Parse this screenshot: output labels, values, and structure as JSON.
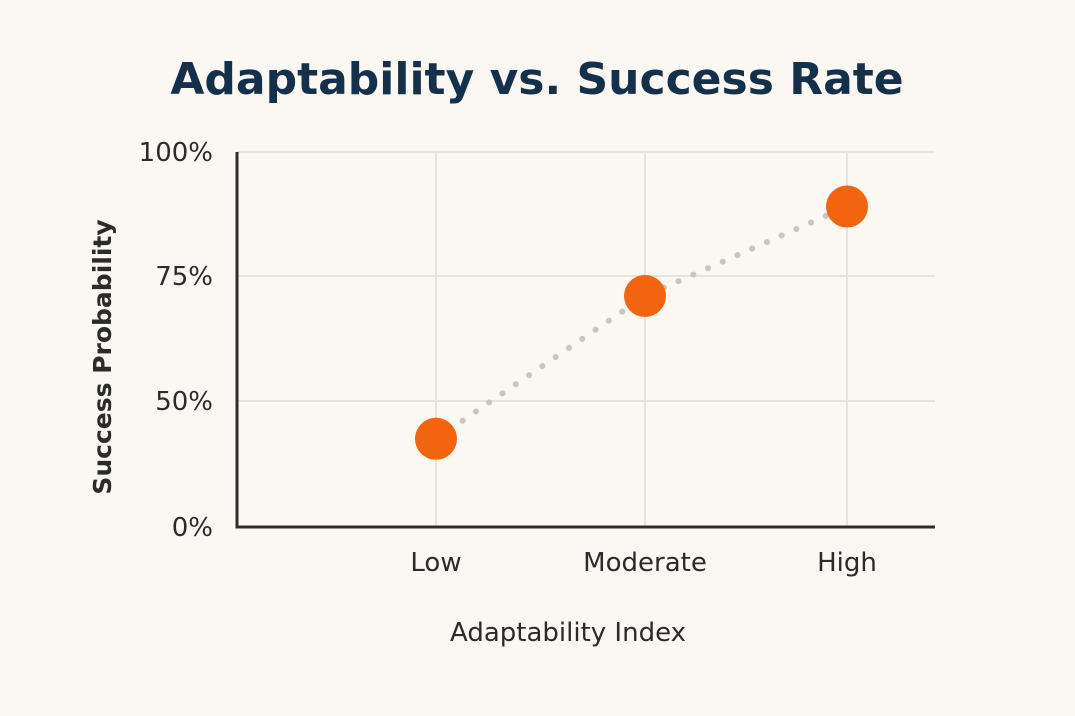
{
  "colors": {
    "background": "#fbf8f3",
    "title": "#15304a",
    "point": "#f2640f",
    "trend": "#c9c6c1",
    "axis": "#2e2e2e",
    "grid": "#e6e3de"
  },
  "chart_data": {
    "type": "scatter",
    "title": "Adaptability vs. Success Rate",
    "xlabel": "Adaptability Index",
    "ylabel": "Success Probability",
    "categories": [
      "Low",
      "Moderate",
      "High"
    ],
    "y_ticks": [
      {
        "value": 0,
        "label": "0%"
      },
      {
        "value": 50,
        "label": "50%"
      },
      {
        "value": 75,
        "label": "75%"
      },
      {
        "value": 100,
        "label": "100%"
      }
    ],
    "ylim": [
      0,
      100
    ],
    "grid": true,
    "trend_line": "dotted",
    "series": [
      {
        "name": "Success Probability",
        "values": [
          35,
          71,
          89
        ]
      }
    ]
  }
}
